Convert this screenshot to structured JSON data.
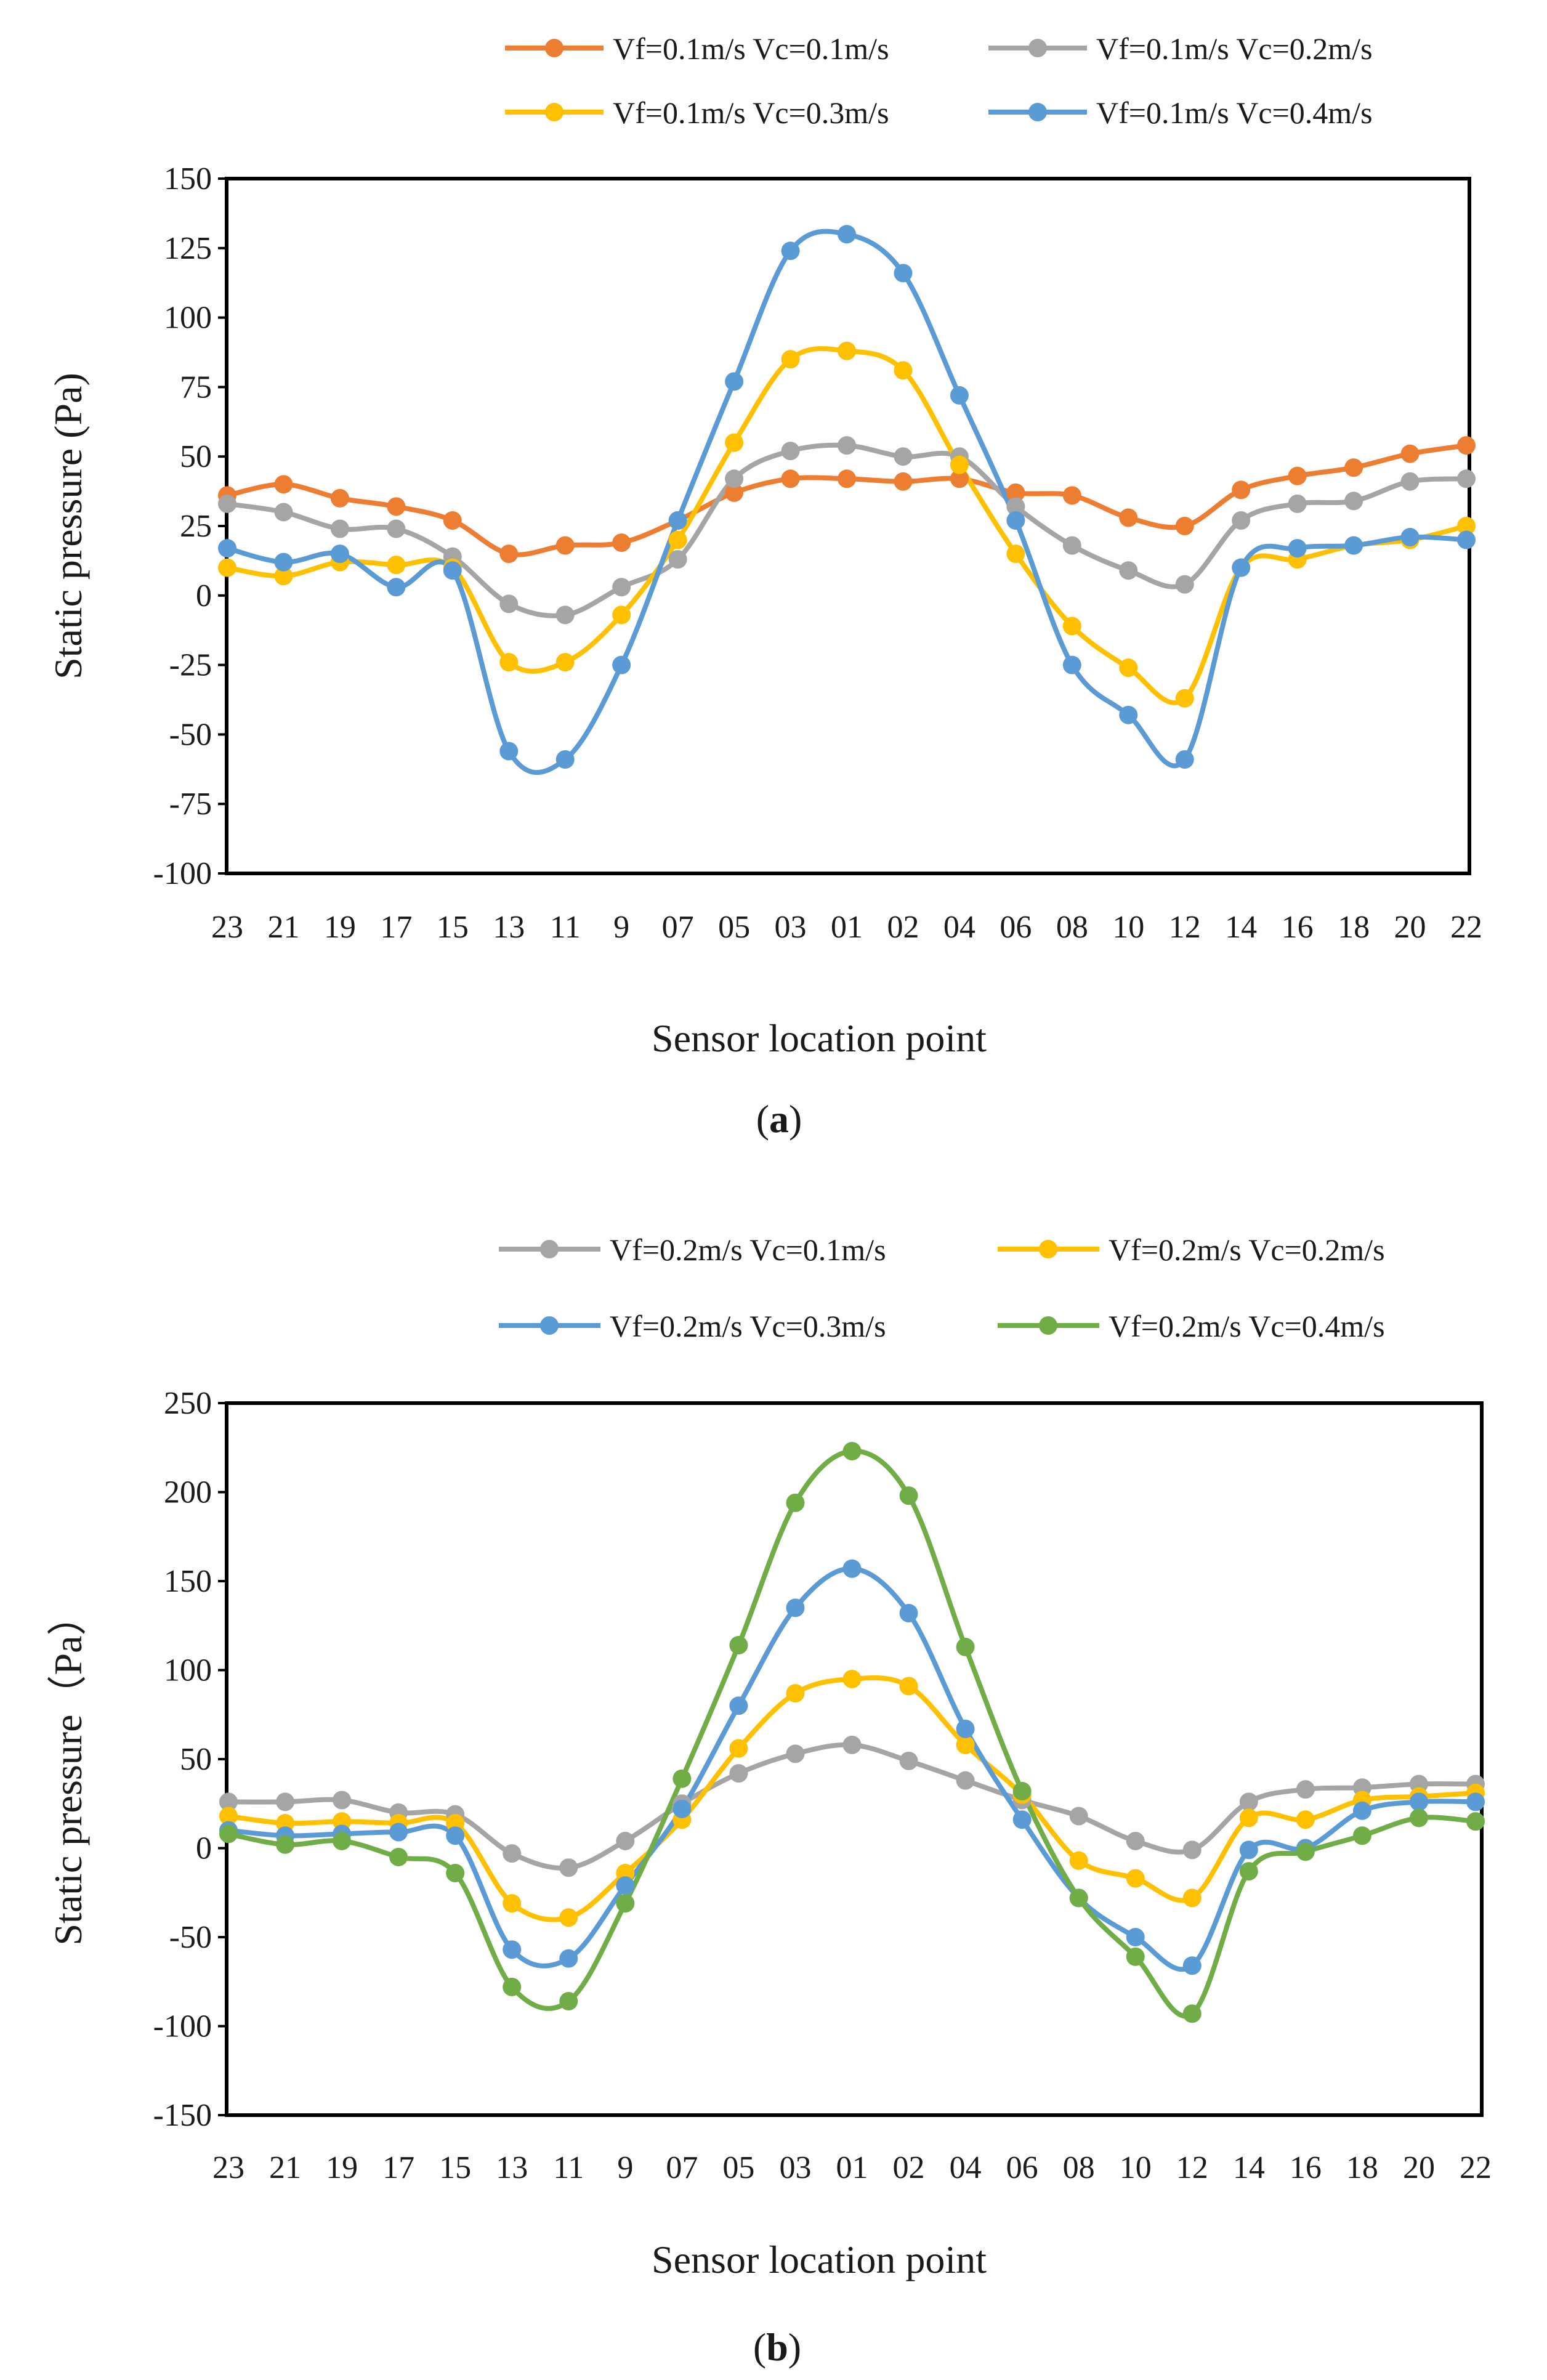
{
  "chart_data": [
    {
      "type": "line",
      "panel_label_open": "(",
      "panel_label_letter": "a",
      "panel_label_close": ")",
      "xlabel": "Sensor location point",
      "ylabel": "Static pressure (Pa)",
      "ylim": [
        -100,
        150
      ],
      "yticks": [
        -100,
        -75,
        -50,
        -25,
        0,
        25,
        50,
        75,
        100,
        125,
        150
      ],
      "categories": [
        "23",
        "21",
        "19",
        "17",
        "15",
        "13",
        "11",
        "9",
        "07",
        "05",
        "03",
        "01",
        "02",
        "04",
        "06",
        "08",
        "10",
        "12",
        "14",
        "16",
        "18",
        "20",
        "22"
      ],
      "legend_position": "top",
      "grid": false,
      "series": [
        {
          "name": "Vf=0.1m/s  Vc=0.1m/s",
          "color": "#ED7D31",
          "values": [
            36,
            40,
            35,
            32,
            27,
            15,
            18,
            19,
            27,
            37,
            42,
            42,
            41,
            42,
            37,
            36,
            28,
            25,
            38,
            43,
            46,
            51,
            54
          ]
        },
        {
          "name": "Vf=0.1m/s  Vc=0.2m/s",
          "color": "#A5A5A5",
          "values": [
            33,
            30,
            24,
            24,
            14,
            -3,
            -7,
            3,
            13,
            42,
            52,
            54,
            50,
            50,
            32,
            18,
            9,
            4,
            27,
            33,
            34,
            41,
            42
          ]
        },
        {
          "name": "Vf=0.1m/s  Vc=0.3m/s",
          "color": "#FFC000",
          "values": [
            10,
            7,
            12,
            11,
            10,
            -24,
            -24,
            -7,
            20,
            55,
            85,
            88,
            81,
            47,
            15,
            -11,
            -26,
            -37,
            10,
            13,
            18,
            20,
            25
          ]
        },
        {
          "name": "Vf=0.1m/s  Vc=0.4m/s",
          "color": "#5B9BD5",
          "values": [
            17,
            12,
            15,
            3,
            9,
            -56,
            -59,
            -25,
            27,
            77,
            124,
            130,
            116,
            72,
            27,
            -25,
            -43,
            -59,
            10,
            17,
            18,
            21,
            20
          ]
        }
      ]
    },
    {
      "type": "line",
      "panel_label_open": "(",
      "panel_label_letter": "b",
      "panel_label_close": ")",
      "xlabel": "Sensor location point",
      "ylabel": "Static pressure（Pa）",
      "ylim": [
        -150,
        250
      ],
      "yticks": [
        -150,
        -100,
        -50,
        0,
        50,
        100,
        150,
        200,
        250
      ],
      "categories": [
        "23",
        "21",
        "19",
        "17",
        "15",
        "13",
        "11",
        "9",
        "07",
        "05",
        "03",
        "01",
        "02",
        "04",
        "06",
        "08",
        "10",
        "12",
        "14",
        "16",
        "18",
        "20",
        "22"
      ],
      "legend_position": "top",
      "grid": false,
      "series": [
        {
          "name": "Vf=0.2m/s  Vc=0.1m/s",
          "color": "#A5A5A5",
          "values": [
            26,
            26,
            27,
            20,
            19,
            -3,
            -11,
            4,
            25,
            42,
            53,
            58,
            49,
            38,
            27,
            18,
            4,
            -1,
            26,
            33,
            34,
            36,
            36
          ]
        },
        {
          "name": "Vf=0.2m/s  Vc=0.2m/s",
          "color": "#FFC000",
          "values": [
            18,
            14,
            15,
            14,
            14,
            -31,
            -39,
            -14,
            16,
            56,
            87,
            95,
            91,
            58,
            30,
            -7,
            -17,
            -28,
            17,
            16,
            27,
            29,
            31
          ]
        },
        {
          "name": "Vf=0.2m/s  Vc=0.3m/s",
          "color": "#5B9BD5",
          "values": [
            10,
            7,
            8,
            9,
            7,
            -57,
            -62,
            -21,
            22,
            80,
            135,
            157,
            132,
            67,
            16,
            -28,
            -50,
            -66,
            -1,
            0,
            21,
            26,
            26
          ]
        },
        {
          "name": "Vf=0.2m/s  Vc=0.4m/s",
          "color": "#70AD47",
          "values": [
            8,
            2,
            4,
            -5,
            -14,
            -78,
            -86,
            -31,
            39,
            114,
            194,
            223,
            198,
            113,
            32,
            -28,
            -61,
            -93,
            -13,
            -2,
            7,
            17,
            15
          ]
        }
      ]
    }
  ]
}
